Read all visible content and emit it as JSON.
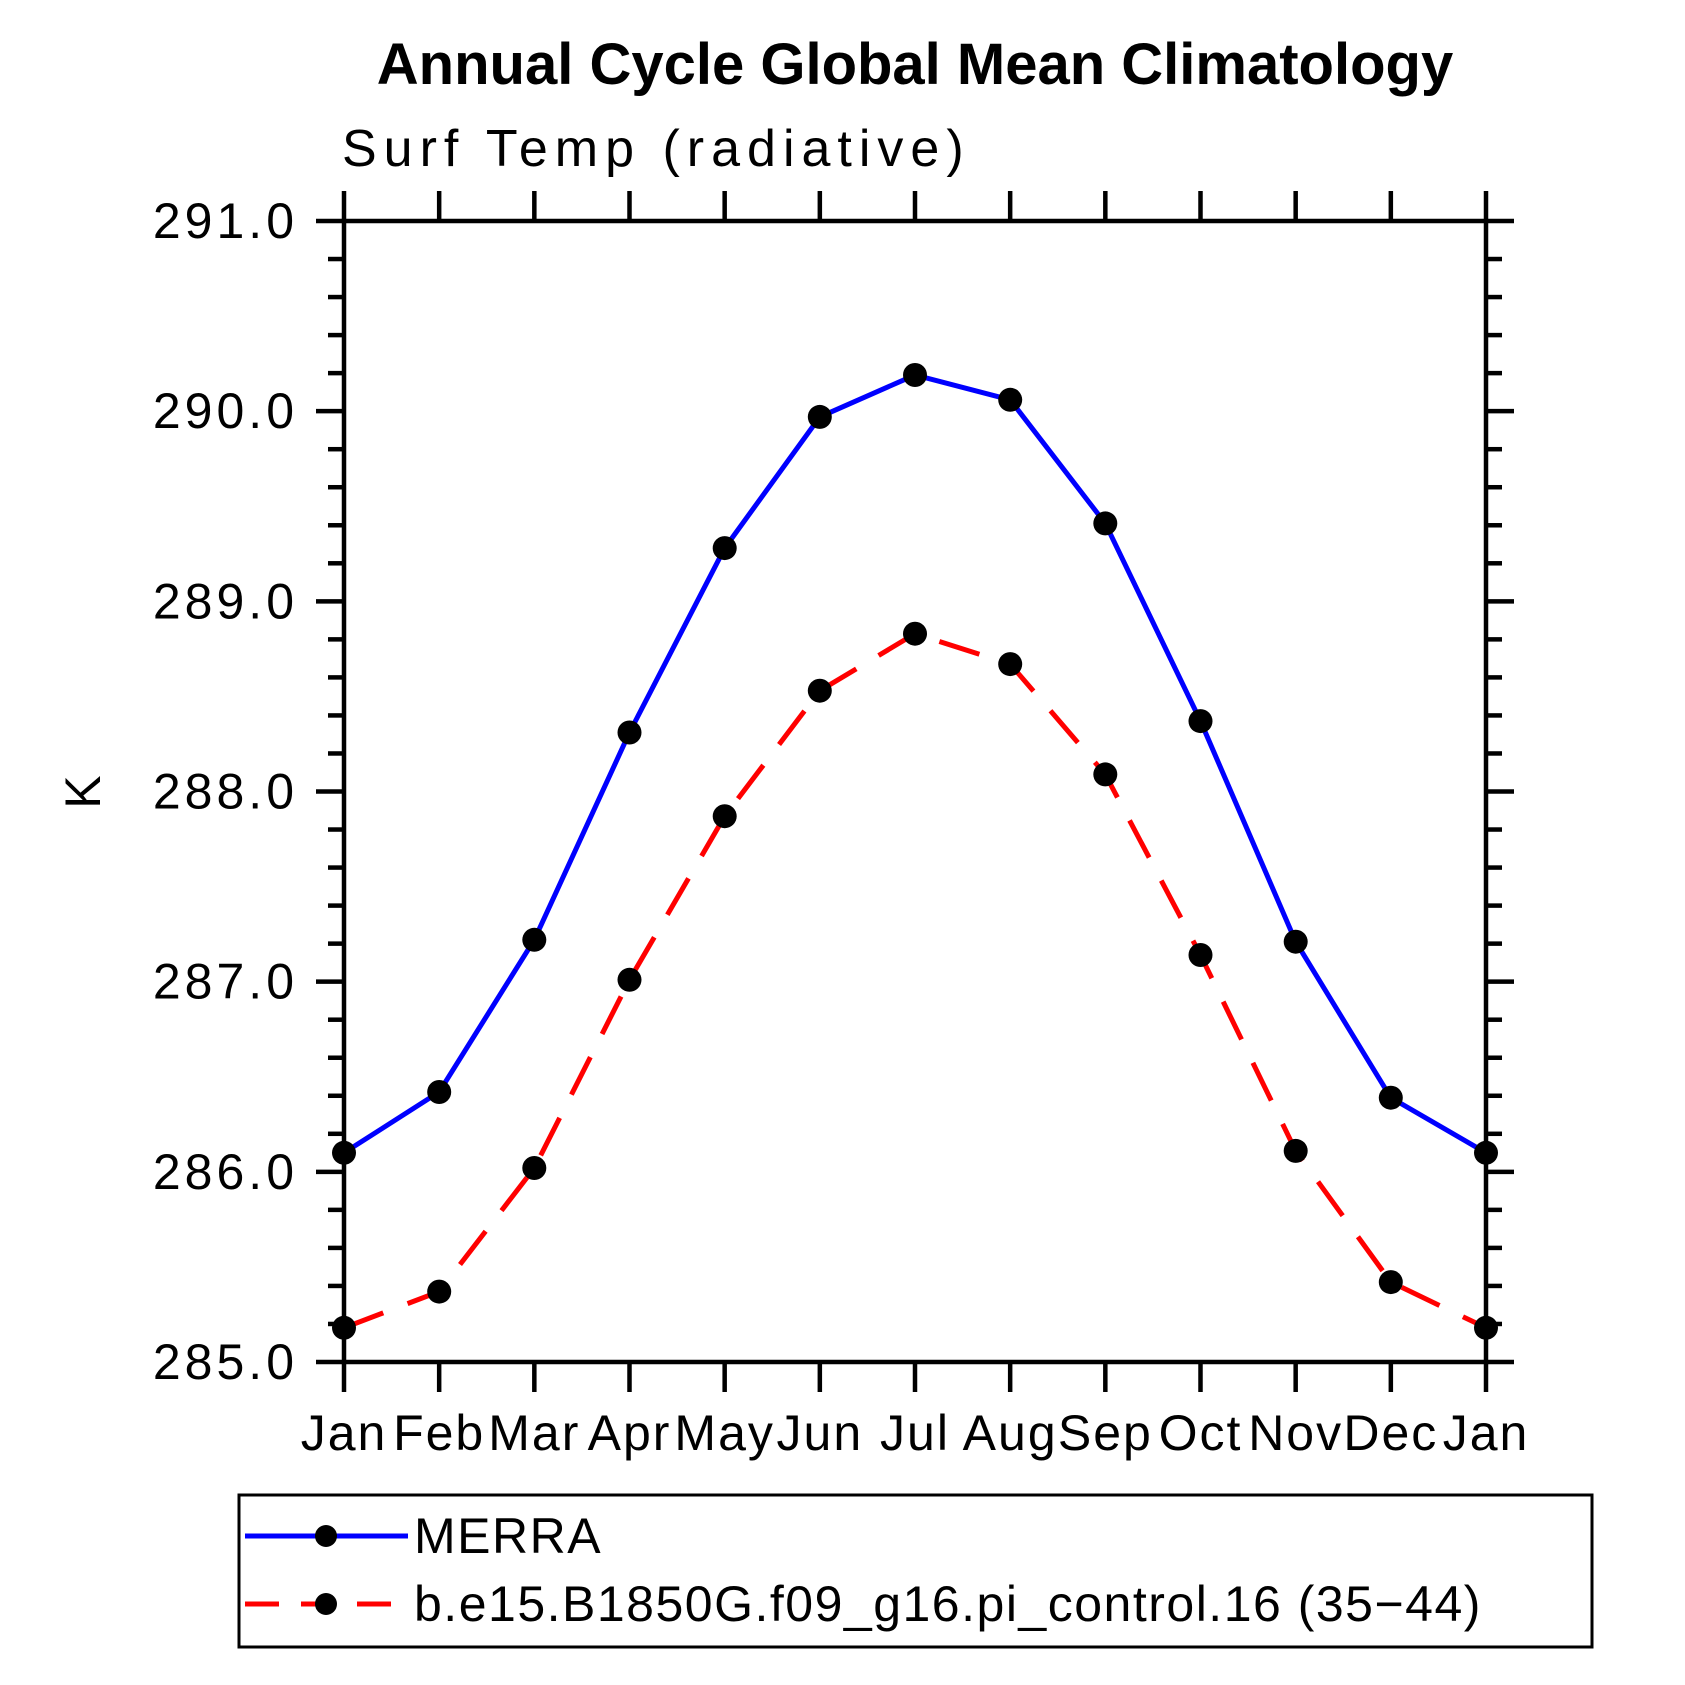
{
  "page": {
    "background": "#ffffff"
  },
  "title": "Annual Cycle Global Mean Climatology",
  "subtitle": "Surf Temp (radiative)",
  "chart_data": {
    "type": "line",
    "categories": [
      "Jan",
      "Feb",
      "Mar",
      "Apr",
      "May",
      "Jun",
      "Jul",
      "Aug",
      "Sep",
      "Oct",
      "Nov",
      "Dec",
      "Jan"
    ],
    "title": "Annual Cycle Global Mean Climatology",
    "subtitle": "Surf Temp (radiative)",
    "xlabel": "",
    "ylabel": "K",
    "ylim": [
      285.0,
      291.0
    ],
    "ytick_values": [
      291.0,
      290.0,
      289.0,
      288.0,
      287.0,
      286.0,
      285.0
    ],
    "ytick_labels": [
      "291.0",
      "290.0",
      "289.0",
      "288.0",
      "287.0",
      "286.0",
      "285.0"
    ],
    "yminor_step": 0.2,
    "grid": false,
    "tick_style": "outward",
    "legend_position": "below-plot-left",
    "axis_color": "#000000",
    "series": [
      {
        "name": "MERRA",
        "color": "#0000ff",
        "line": "solid",
        "marker": "filled-circle",
        "marker_color": "#000000",
        "values": [
          286.1,
          286.42,
          287.22,
          288.31,
          289.28,
          289.97,
          290.19,
          290.06,
          289.41,
          288.37,
          287.21,
          286.39,
          286.1
        ]
      },
      {
        "name": "b.e15.B1850G.f09_g16.pi_control.16 (35−44)",
        "color": "#ff0000",
        "line": "dashed",
        "marker": "filled-circle",
        "marker_color": "#000000",
        "values": [
          285.18,
          285.37,
          286.02,
          287.01,
          287.87,
          288.53,
          288.83,
          288.67,
          288.09,
          287.14,
          286.11,
          285.42,
          285.18
        ]
      }
    ]
  }
}
